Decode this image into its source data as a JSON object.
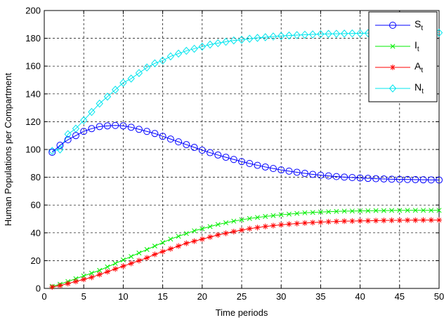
{
  "chart_data": {
    "type": "line",
    "title": "",
    "xlabel": "Time periods",
    "ylabel": "Human Populations per Compartment",
    "xlim": [
      0,
      50
    ],
    "ylim": [
      0,
      200
    ],
    "xticks": [
      "0",
      "5",
      "10",
      "15",
      "20",
      "25",
      "30",
      "35",
      "40",
      "45",
      "50"
    ],
    "yticks": [
      "0",
      "20",
      "40",
      "60",
      "80",
      "100",
      "120",
      "140",
      "160",
      "180",
      "200"
    ],
    "grid": true,
    "grid_style": "dashed",
    "legend_position": "top-right",
    "x": [
      1,
      2,
      3,
      4,
      5,
      6,
      7,
      8,
      9,
      10,
      11,
      12,
      13,
      14,
      15,
      16,
      17,
      18,
      19,
      20,
      21,
      22,
      23,
      24,
      25,
      26,
      27,
      28,
      29,
      30,
      31,
      32,
      33,
      34,
      35,
      36,
      37,
      38,
      39,
      40,
      41,
      42,
      43,
      44,
      45,
      46,
      47,
      48,
      49,
      50
    ],
    "series": [
      {
        "name": "S",
        "sub": "t",
        "color": "#0000ff",
        "marker": "circle",
        "values": [
          98,
          103,
          107,
          110,
          113,
          115,
          116.5,
          117,
          117.3,
          117,
          116,
          114.5,
          113,
          111.5,
          109.5,
          107.5,
          105.5,
          103.5,
          101.5,
          99.5,
          97.7,
          96,
          94.4,
          92.8,
          91.3,
          89.9,
          88.6,
          87.4,
          86.3,
          85.3,
          84.4,
          83.6,
          82.8,
          82.1,
          81.5,
          81,
          80.5,
          80.1,
          79.8,
          79.5,
          79.2,
          79,
          78.8,
          78.6,
          78.5,
          78.4,
          78.3,
          78.2,
          78.1,
          78
        ]
      },
      {
        "name": "I",
        "sub": "t",
        "color": "#00ee00",
        "marker": "x",
        "values": [
          1.5,
          3,
          5,
          7,
          9,
          11,
          13,
          15.5,
          18,
          20.5,
          23,
          25.5,
          28,
          30.5,
          33,
          35.5,
          37.5,
          39.5,
          41.5,
          43,
          44.5,
          46,
          47.2,
          48.4,
          49.4,
          50.3,
          51.1,
          51.8,
          52.4,
          53,
          53.5,
          54,
          54.4,
          54.7,
          55,
          55.2,
          55.4,
          55.6,
          55.7,
          55.8,
          55.9,
          56,
          56,
          56.1,
          56.1,
          56.2,
          56.2,
          56.2,
          56.2,
          56.2
        ]
      },
      {
        "name": "A",
        "sub": "t",
        "color": "#ff0000",
        "marker": "asterisk",
        "values": [
          1,
          2,
          3.5,
          5,
          6.5,
          8,
          10,
          12,
          14,
          16,
          18,
          20,
          22,
          24.5,
          26.5,
          28.5,
          30.5,
          32.5,
          34,
          35.5,
          37,
          38.5,
          39.7,
          40.9,
          42,
          43,
          43.8,
          44.6,
          45.2,
          45.8,
          46.3,
          46.7,
          47.1,
          47.4,
          47.7,
          48,
          48.2,
          48.4,
          48.5,
          48.6,
          48.7,
          48.8,
          48.9,
          49,
          49,
          49.1,
          49.1,
          49.2,
          49.2,
          49.2
        ]
      },
      {
        "name": "N",
        "sub": "t",
        "color": "#00e5ee",
        "marker": "diamond",
        "values": [
          99,
          100,
          111,
          115,
          121,
          127,
          133,
          138,
          143,
          148,
          151,
          155,
          159,
          162,
          164,
          167,
          169,
          171,
          172.5,
          174,
          175.5,
          176.5,
          177.5,
          178.5,
          179,
          179.7,
          180.3,
          180.8,
          181.3,
          181.7,
          182,
          182.3,
          182.6,
          182.8,
          183,
          183.2,
          183.3,
          183.4,
          183.5,
          183.6,
          183.7,
          183.8,
          183.8,
          183.9,
          183.9,
          184,
          184,
          184,
          184,
          184
        ]
      }
    ]
  }
}
